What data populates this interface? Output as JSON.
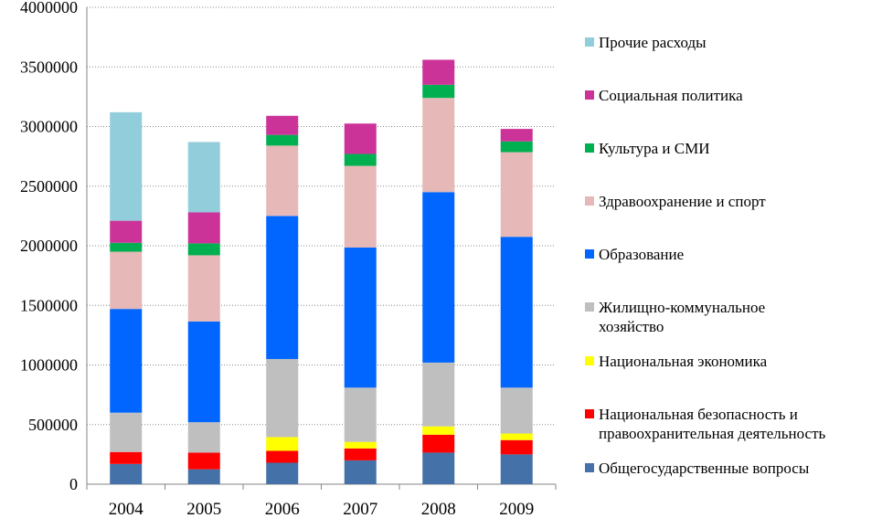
{
  "chart_data": {
    "type": "bar",
    "stacked": true,
    "categories": [
      "2004",
      "2005",
      "2006",
      "2007",
      "2008",
      "2009"
    ],
    "ylim": [
      0,
      4000000
    ],
    "yticks": [
      "0",
      "500000",
      "1000000",
      "1500000",
      "2000000",
      "2500000",
      "3000000",
      "3500000",
      "4000000"
    ],
    "grid": true,
    "legend_position": "right",
    "series": [
      {
        "name": "Общегосударственные вопросы",
        "color": "#4472A8",
        "values": [
          170000,
          125000,
          180000,
          200000,
          265000,
          250000
        ]
      },
      {
        "name": "Национальная безопасность и правоохранительная деятельность",
        "color": "#FF0000",
        "values": [
          100000,
          140000,
          100000,
          100000,
          150000,
          120000
        ]
      },
      {
        "name": "Национальная экономика",
        "color": "#FFFF00",
        "values": [
          0,
          0,
          115000,
          55000,
          70000,
          55000
        ]
      },
      {
        "name": "Жилищно-коммунальное хозяйство",
        "color": "#BFBFBF",
        "values": [
          330000,
          255000,
          655000,
          455000,
          535000,
          385000
        ]
      },
      {
        "name": "Образование",
        "color": "#0066FF",
        "values": [
          870000,
          845000,
          1200000,
          1175000,
          1430000,
          1265000
        ]
      },
      {
        "name": "Здравоохранение и спорт",
        "color": "#E6B8B7",
        "values": [
          480000,
          555000,
          590000,
          685000,
          790000,
          710000
        ]
      },
      {
        "name": "Культура и СМИ",
        "color": "#00B050",
        "values": [
          75000,
          100000,
          90000,
          100000,
          110000,
          90000
        ]
      },
      {
        "name": "Социальная политика",
        "color": "#CC3399",
        "values": [
          185000,
          260000,
          160000,
          255000,
          210000,
          105000
        ]
      },
      {
        "name": "Прочие расходы",
        "color": "#92CDDC",
        "values": [
          910000,
          590000,
          0,
          0,
          0,
          0
        ]
      }
    ]
  },
  "legend": [
    {
      "label": "Прочие расходы",
      "color": "#92CDDC"
    },
    {
      "label": "Социальная политика",
      "color": "#CC3399"
    },
    {
      "label": "Культура и СМИ",
      "color": "#00B050"
    },
    {
      "label": "Здравоохранение и спорт",
      "color": "#E6B8B7"
    },
    {
      "label": "Образование",
      "color": "#0066FF"
    },
    {
      "label": "Жилищно-коммунальное\nхозяйство",
      "color": "#BFBFBF"
    },
    {
      "label": "Национальная экономика",
      "color": "#FFFF00"
    },
    {
      "label": "Национальная безопасность и\nправоохранительная деятельность",
      "color": "#FF0000"
    },
    {
      "label": "Общегосударственные вопросы",
      "color": "#4472A8"
    }
  ]
}
